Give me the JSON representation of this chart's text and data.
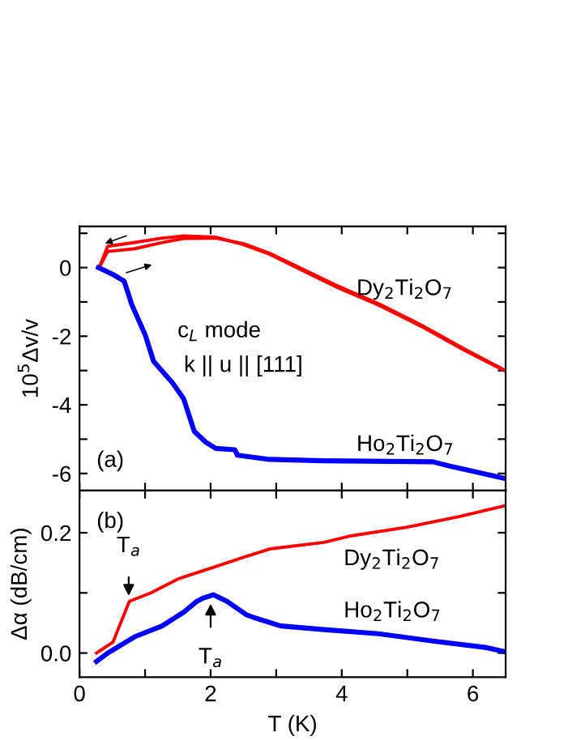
{
  "chart_data": [
    {
      "type": "line",
      "ylabel": "10$^{5}$Δv/v",
      "xlim": [
        0,
        6.5
      ],
      "ylim": [
        -6.5,
        1.2
      ],
      "xticks": [
        0,
        {
          "value": 1,
          "label": null
        },
        2,
        {
          "value": 3,
          "label": null
        },
        4,
        {
          "value": 5,
          "label": null
        },
        6
      ],
      "yticks": [
        {
          "value": -6,
          "label": "-6"
        },
        {
          "value": -5,
          "label": null
        },
        {
          "value": -4,
          "label": "-4"
        },
        {
          "value": -3,
          "label": null
        },
        {
          "value": -2,
          "label": "-2"
        },
        {
          "value": -1,
          "label": null
        },
        0,
        {
          "value": 1,
          "label": null
        }
      ],
      "tick_labels": "y",
      "grid": false,
      "marker": "none",
      "line_style": "solid",
      "annotations": [
        "(a)",
        "c$_{L}$ mode",
        "k || u || [111]",
        "Dy$_{2}$Ti$_{2}$O$_{7}$",
        "Ho$_{2}$Ti$_{2}$O$_{7}$"
      ],
      "series": [
        {
          "color": "#ff0000",
          "x": [
            0.3,
            0.43,
            0.8,
            1.26,
            1.59,
            2.08,
            2.5,
            2.9,
            3.4,
            3.9,
            4.56,
            5.22,
            5.88,
            6.5
          ],
          "values": [
            0,
            0.62,
            0.72,
            0.86,
            0.92,
            0.89,
            0.67,
            0.39,
            -0.08,
            -0.55,
            -1.09,
            -1.72,
            -2.42,
            -3.02
          ]
        },
        {
          "color": "#ff0000",
          "x": [
            0.3,
            0.43,
            0.84,
            1.26,
            1.59,
            2.08,
            2.5,
            2.9,
            3.4,
            3.9,
            4.56,
            5.22,
            5.88,
            6.5
          ],
          "values": [
            0,
            0.47,
            0.55,
            0.73,
            0.85,
            0.86,
            0.7,
            0.42,
            -0.04,
            -0.5,
            -1.05,
            -1.68,
            -2.38,
            -3.0
          ]
        },
        {
          "color": "#0000ff",
          "x": [
            0.29,
            0.51,
            0.68,
            0.8,
            1.0,
            1.13,
            1.42,
            1.59,
            1.75,
            1.92,
            2.08,
            2.37,
            2.41,
            2.9,
            3.73,
            5.39,
            5.64,
            6.5
          ],
          "values": [
            0,
            -0.2,
            -0.39,
            -1.09,
            -1.95,
            -2.73,
            -3.36,
            -3.83,
            -4.77,
            -5.08,
            -5.27,
            -5.31,
            -5.47,
            -5.59,
            -5.63,
            -5.66,
            -5.78,
            -6.15
          ]
        }
      ]
    },
    {
      "type": "line",
      "xlabel": "T (K)",
      "ylabel": "Δα (dB/cm)",
      "xlim": [
        0,
        6.5
      ],
      "ylim": [
        -0.04,
        0.27
      ],
      "xticks": [
        0,
        {
          "value": 1,
          "label": null
        },
        2,
        {
          "value": 3,
          "label": null
        },
        4,
        {
          "value": 5,
          "label": null
        },
        6
      ],
      "yticks": [
        {
          "value": 0.0,
          "label": "0.0"
        },
        {
          "value": 0.1,
          "label": null
        },
        {
          "value": 0.2,
          "label": "0.2"
        }
      ],
      "grid": false,
      "marker": "none",
      "line_style": "solid",
      "annotations": [
        "(b)",
        "Dy$_{2}$Ti$_{2}$O$_{7}$",
        "Ho$_{2}$Ti$_{2}$O$_{7}$",
        {
          "text": "T$_{a}$",
          "x": 0.75,
          "y": 0.095
        },
        {
          "text": "T$_{a}$",
          "x": 2.0,
          "y": 0.082
        }
      ],
      "series": [
        {
          "color": "#ff0000",
          "x": [
            0.26,
            0.51,
            0.76,
            1.09,
            1.5,
            2.0,
            2.5,
            2.9,
            3.73,
            4.15,
            4.98,
            5.8,
            6.5
          ],
          "values": [
            0.0,
            0.018,
            0.086,
            0.1,
            0.123,
            0.141,
            0.159,
            0.173,
            0.184,
            0.195,
            0.209,
            0.227,
            0.245
          ]
        },
        {
          "color": "#0000ff",
          "x": [
            0.26,
            0.43,
            0.84,
            1.26,
            1.59,
            1.79,
            1.88,
            2.04,
            2.25,
            2.54,
            2.66,
            3.07,
            3.73,
            4.56,
            5.39,
            6.21,
            6.5
          ],
          "values": [
            -0.014,
            0.0,
            0.027,
            0.045,
            0.068,
            0.086,
            0.091,
            0.097,
            0.086,
            0.064,
            0.059,
            0.045,
            0.039,
            0.032,
            0.02,
            0.009,
            0.002
          ]
        }
      ]
    }
  ]
}
